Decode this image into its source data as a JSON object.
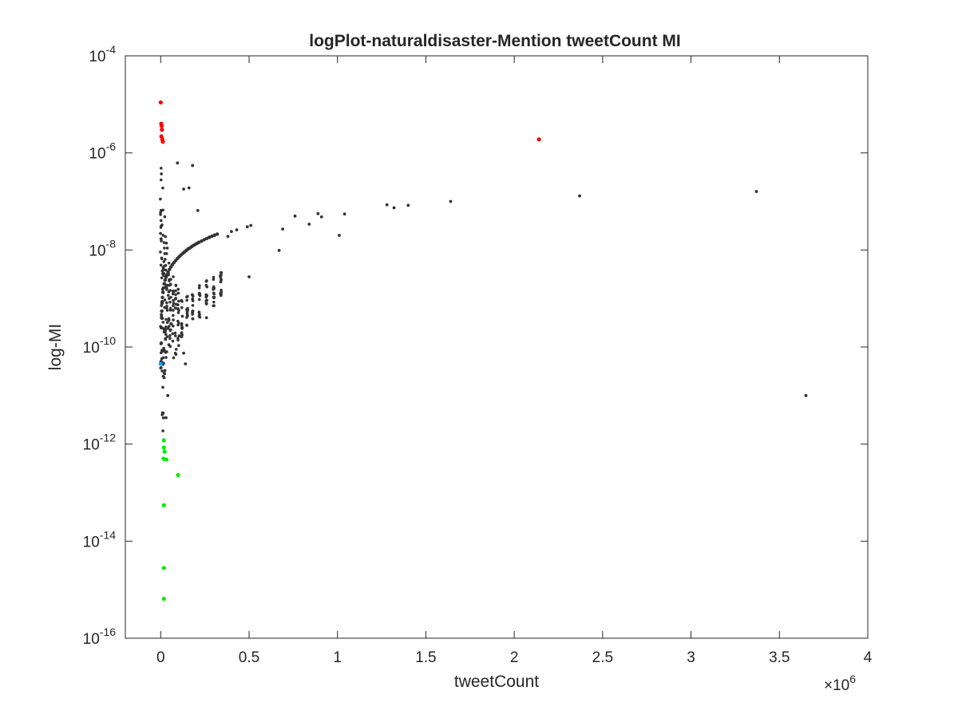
{
  "chart_data": {
    "type": "scatter",
    "title": "logPlot-naturaldisaster-Mention tweetCount MI",
    "xlabel": "tweetCount",
    "ylabel": "log-MI",
    "x_multiplier_label": {
      "base": "×10",
      "exponent": "6"
    },
    "xlim": [
      -200000,
      4000000
    ],
    "ylim_log10": [
      -16,
      -4
    ],
    "yscale": "log",
    "x_ticks": [
      {
        "value": 0,
        "label": "0"
      },
      {
        "value": 500000,
        "label": "0.5"
      },
      {
        "value": 1000000,
        "label": "1"
      },
      {
        "value": 1500000,
        "label": "1.5"
      },
      {
        "value": 2000000,
        "label": "2"
      },
      {
        "value": 2500000,
        "label": "2.5"
      },
      {
        "value": 3000000,
        "label": "3"
      },
      {
        "value": 3500000,
        "label": "3.5"
      },
      {
        "value": 4000000,
        "label": "4"
      }
    ],
    "y_ticks": [
      {
        "log10": -16,
        "base": "10",
        "exponent": "-16"
      },
      {
        "log10": -14,
        "base": "10",
        "exponent": "-14"
      },
      {
        "log10": -12,
        "base": "10",
        "exponent": "-12"
      },
      {
        "log10": -10,
        "base": "10",
        "exponent": "-10"
      },
      {
        "log10": -8,
        "base": "10",
        "exponent": "-8"
      },
      {
        "log10": -6,
        "base": "10",
        "exponent": "-6"
      },
      {
        "log10": -4,
        "base": "10",
        "exponent": "-4"
      }
    ],
    "grid": false,
    "legend": "none",
    "colors": {
      "default": "#333333",
      "high": "#ff0000",
      "low": "#00ee00",
      "highlight": "#00aaff"
    },
    "points": [
      {
        "x": 0,
        "y": 1.1e-05,
        "c": "high"
      },
      {
        "x": 3000,
        "y": 4e-06,
        "c": "high"
      },
      {
        "x": 5000,
        "y": 3.6e-06,
        "c": "high"
      },
      {
        "x": 7000,
        "y": 3e-06,
        "c": "high"
      },
      {
        "x": 4000,
        "y": 2.2e-06,
        "c": "high"
      },
      {
        "x": 9000,
        "y": 1.9e-06,
        "c": "high"
      },
      {
        "x": 12000,
        "y": 1.7e-06,
        "c": "high"
      },
      {
        "x": 2140000,
        "y": 1.9e-06,
        "c": "high"
      },
      {
        "x": 0,
        "y": 4.5e-11,
        "c": "highlight"
      },
      {
        "x": 18000,
        "y": 1.2e-12,
        "c": "low"
      },
      {
        "x": 18000,
        "y": 8.5e-13,
        "c": "low"
      },
      {
        "x": 22000,
        "y": 7e-13,
        "c": "low"
      },
      {
        "x": 16000,
        "y": 5e-13,
        "c": "low"
      },
      {
        "x": 32000,
        "y": 4.8e-13,
        "c": "low"
      },
      {
        "x": 98000,
        "y": 2.3e-13,
        "c": "low"
      },
      {
        "x": 18000,
        "y": 5.5e-14,
        "c": "low"
      },
      {
        "x": 18000,
        "y": 2.8e-15,
        "c": "low"
      },
      {
        "x": 18000,
        "y": 6.5e-16,
        "c": "low"
      },
      {
        "x": 3650000,
        "y": 1e-11,
        "c": "default"
      },
      {
        "x": 3370000,
        "y": 1.6e-07,
        "c": "default"
      },
      {
        "x": 2370000,
        "y": 1.3e-07,
        "c": "default"
      },
      {
        "x": 1640000,
        "y": 1e-07,
        "c": "default"
      },
      {
        "x": 1400000,
        "y": 8.3e-08,
        "c": "default"
      },
      {
        "x": 1320000,
        "y": 7.4e-08,
        "c": "default"
      },
      {
        "x": 1280000,
        "y": 8.5e-08,
        "c": "default"
      },
      {
        "x": 1040000,
        "y": 5.5e-08,
        "c": "default"
      },
      {
        "x": 1010000,
        "y": 2e-08,
        "c": "default"
      },
      {
        "x": 910000,
        "y": 4.8e-08,
        "c": "default"
      },
      {
        "x": 890000,
        "y": 5.6e-08,
        "c": "default"
      },
      {
        "x": 840000,
        "y": 3.4e-08,
        "c": "default"
      },
      {
        "x": 760000,
        "y": 5e-08,
        "c": "default"
      },
      {
        "x": 690000,
        "y": 2.7e-08,
        "c": "default"
      },
      {
        "x": 670000,
        "y": 9.8e-09,
        "c": "default"
      },
      {
        "x": 510000,
        "y": 3.2e-08,
        "c": "default"
      },
      {
        "x": 490000,
        "y": 3e-08,
        "c": "default"
      },
      {
        "x": 500000,
        "y": 2.8e-09,
        "c": "default"
      },
      {
        "x": 430000,
        "y": 2.6e-08,
        "c": "default"
      },
      {
        "x": 400000,
        "y": 2.4e-08,
        "c": "default"
      },
      {
        "x": 380000,
        "y": 1.9e-08,
        "c": "default"
      },
      {
        "x": 180000,
        "y": 5.5e-07,
        "c": "default"
      },
      {
        "x": 95000,
        "y": 6.2e-07,
        "c": "default"
      },
      {
        "x": 210000,
        "y": 6.5e-08,
        "c": "default"
      },
      {
        "x": 130000,
        "y": 1.8e-07,
        "c": "default"
      },
      {
        "x": 160000,
        "y": 1.9e-07,
        "c": "default"
      },
      {
        "x": 140000,
        "y": 4.5e-11,
        "c": "default"
      },
      {
        "x": 130000,
        "y": 7.5e-11,
        "c": "default"
      },
      {
        "x": 105000,
        "y": 1.7e-10,
        "c": "default"
      },
      {
        "x": 60000,
        "y": 3e-10,
        "c": "default"
      },
      {
        "x": 40000,
        "y": 1e-11,
        "c": "default"
      },
      {
        "x": 30000,
        "y": 3.5e-12,
        "c": "default"
      }
    ],
    "curve_points": [
      {
        "x": 2000,
        "y": 5e-11
      },
      {
        "x": 3000,
        "y": 1.2e-10
      },
      {
        "x": 4000,
        "y": 2.5e-10
      },
      {
        "x": 5000,
        "y": 4e-10
      },
      {
        "x": 6000,
        "y": 5.5e-10
      },
      {
        "x": 8000,
        "y": 8e-10
      },
      {
        "x": 10000,
        "y": 1.05e-09
      },
      {
        "x": 13000,
        "y": 1.35e-09
      },
      {
        "x": 16000,
        "y": 1.65e-09
      },
      {
        "x": 20000,
        "y": 2e-09
      },
      {
        "x": 25000,
        "y": 2.4e-09
      },
      {
        "x": 30000,
        "y": 2.75e-09
      },
      {
        "x": 36000,
        "y": 3.1e-09
      },
      {
        "x": 42000,
        "y": 3.5e-09
      },
      {
        "x": 50000,
        "y": 4e-09
      },
      {
        "x": 58000,
        "y": 4.5e-09
      },
      {
        "x": 66000,
        "y": 5e-09
      },
      {
        "x": 75000,
        "y": 5.5e-09
      },
      {
        "x": 85000,
        "y": 6.1e-09
      },
      {
        "x": 95000,
        "y": 6.7e-09
      },
      {
        "x": 105000,
        "y": 7.3e-09
      },
      {
        "x": 115000,
        "y": 7.9e-09
      },
      {
        "x": 125000,
        "y": 8.5e-09
      },
      {
        "x": 135000,
        "y": 9.1e-09
      },
      {
        "x": 145000,
        "y": 9.8e-09
      },
      {
        "x": 155000,
        "y": 1.05e-08
      },
      {
        "x": 165000,
        "y": 1.1e-08
      },
      {
        "x": 175000,
        "y": 1.17e-08
      },
      {
        "x": 185000,
        "y": 1.24e-08
      },
      {
        "x": 195000,
        "y": 1.3e-08
      },
      {
        "x": 205000,
        "y": 1.37e-08
      },
      {
        "x": 215000,
        "y": 1.43e-08
      },
      {
        "x": 230000,
        "y": 1.52e-08
      },
      {
        "x": 245000,
        "y": 1.62e-08
      },
      {
        "x": 260000,
        "y": 1.72e-08
      },
      {
        "x": 275000,
        "y": 1.82e-08
      },
      {
        "x": 290000,
        "y": 1.92e-08
      },
      {
        "x": 305000,
        "y": 2.02e-08
      },
      {
        "x": 320000,
        "y": 2.12e-08
      }
    ],
    "vertical_band": {
      "columns": [
        {
          "x": 0,
          "log_min": -11.0,
          "log_max": -5.9
        },
        {
          "x": 4000,
          "log_min": -11.2,
          "log_max": -6.3
        },
        {
          "x": 8000,
          "log_min": -11.5,
          "log_max": -6.5
        },
        {
          "x": 12000,
          "log_min": -11.8,
          "log_max": -6.7
        },
        {
          "x": 16000,
          "log_min": -11.5,
          "log_max": -6.9
        },
        {
          "x": 22000,
          "log_min": -11.0,
          "log_max": -7.2
        },
        {
          "x": 28000,
          "log_min": -10.5,
          "log_max": -7.5
        },
        {
          "x": 35000,
          "log_min": -10.2,
          "log_max": -7.8
        },
        {
          "x": 45000,
          "log_min": -10.0,
          "log_max": -8.1
        },
        {
          "x": 55000,
          "log_min": -10.1,
          "log_max": -8.3
        },
        {
          "x": 70000,
          "log_min": -10.3,
          "log_max": -8.5
        },
        {
          "x": 85000,
          "log_min": -10.2,
          "log_max": -8.7
        },
        {
          "x": 100000,
          "log_min": -10.0,
          "log_max": -8.8
        },
        {
          "x": 120000,
          "log_min": -9.8,
          "log_max": -8.9
        },
        {
          "x": 150000,
          "log_min": -9.6,
          "log_max": -8.9
        },
        {
          "x": 180000,
          "log_min": -9.5,
          "log_max": -8.9
        },
        {
          "x": 220000,
          "log_min": -9.5,
          "log_max": -8.7
        },
        {
          "x": 260000,
          "log_min": -9.4,
          "log_max": -8.6
        },
        {
          "x": 300000,
          "log_min": -9.2,
          "log_max": -8.5
        },
        {
          "x": 340000,
          "log_min": -9.0,
          "log_max": -8.4
        }
      ],
      "points_per_column": 14
    }
  }
}
